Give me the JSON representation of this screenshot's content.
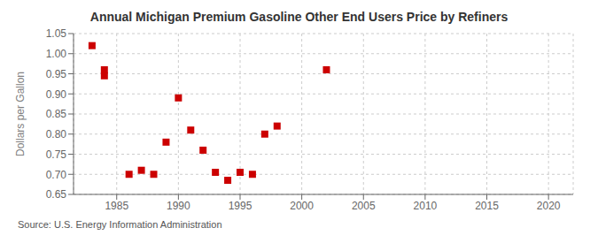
{
  "chart_data": {
    "type": "scatter",
    "title": "Annual Michigan Premium Gasoline Other End Users Price by Refiners",
    "ylabel": "Dollars per Gallon",
    "annotations": [
      "Source: U.S. Energy Information Administration"
    ],
    "x": [
      1983,
      1984,
      1984,
      1986,
      1987,
      1988,
      1989,
      1990,
      1991,
      1992,
      1993,
      1994,
      1995,
      1996,
      1997,
      1998,
      2002
    ],
    "values": [
      1.02,
      0.96,
      0.945,
      0.7,
      0.71,
      0.7,
      0.78,
      0.89,
      0.81,
      0.76,
      0.705,
      0.685,
      0.705,
      0.7,
      0.8,
      0.82,
      0.96
    ],
    "color": "#cc0000",
    "marker": "square",
    "xlim": [
      1981.5,
      2022
    ],
    "ylim": [
      0.65,
      1.05
    ],
    "xticks": [
      1985,
      1990,
      1995,
      2000,
      2005,
      2010,
      2015,
      2020
    ],
    "yticks": [
      0.65,
      {
        "value": 0.7,
        "label": "0.70"
      },
      0.75,
      {
        "value": 0.8,
        "label": "0.80"
      },
      0.85,
      {
        "value": 0.9,
        "label": "0.90"
      },
      0.95,
      {
        "value": 1.0,
        "label": "1.00"
      },
      1.05
    ],
    "grid": true
  }
}
